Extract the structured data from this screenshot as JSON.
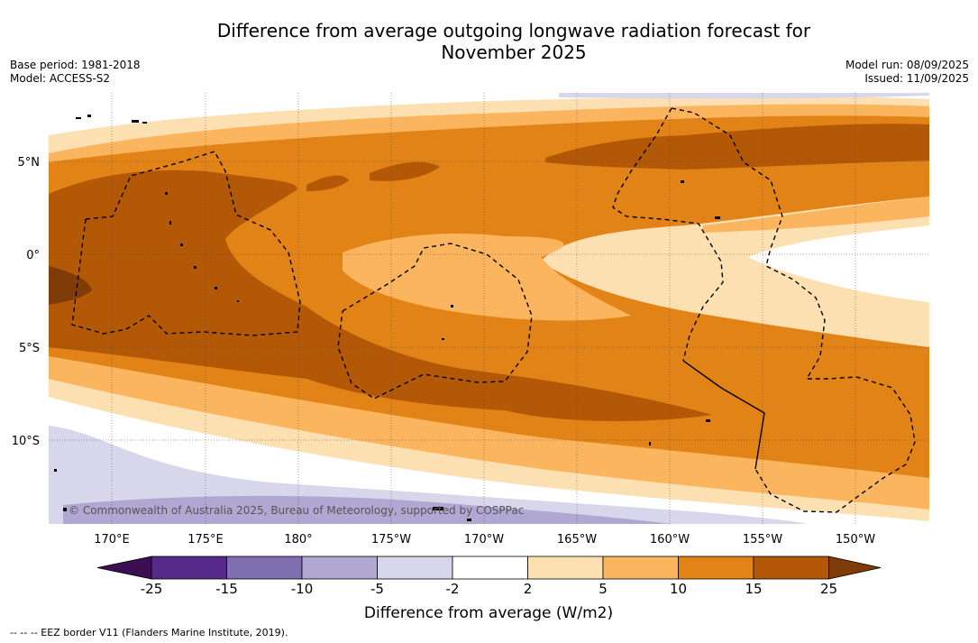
{
  "header": {
    "title_line1": "Difference from average outgoing longwave radiation forecast for",
    "title_line2": "November 2025",
    "base_period": "Base period: 1981-2018",
    "model": "Model: ACCESS-S2",
    "model_run": "Model run: 08/09/2025",
    "issued": "Issued: 11/09/2025"
  },
  "map": {
    "copyright": "© Commonwealth of Australia 2025, Bureau of Meteorology, supported by COSPPac",
    "lat_labels": [
      "5°N",
      "0°",
      "5°S",
      "10°S"
    ],
    "lon_labels": [
      "170°E",
      "175°E",
      "180°",
      "175°W",
      "170°W",
      "165°W",
      "160°W",
      "155°W",
      "150°W"
    ]
  },
  "legend": {
    "tick_labels": [
      "-25",
      "-15",
      "-10",
      "-5",
      "-2",
      "2",
      "5",
      "10",
      "15",
      "25"
    ],
    "title": "Difference from average (W/m2)",
    "colors": [
      "#3b0f52",
      "#552a8a",
      "#7e6fae",
      "#b0a7d2",
      "#d7d6eb",
      "#ffffff",
      "#fde0b2",
      "#fbb55e",
      "#e28317",
      "#b35806",
      "#7f3b08"
    ]
  },
  "footer": {
    "eez_line": "-- -- -- EEZ border V11 (Flanders Marine Institute, 2019)."
  }
}
